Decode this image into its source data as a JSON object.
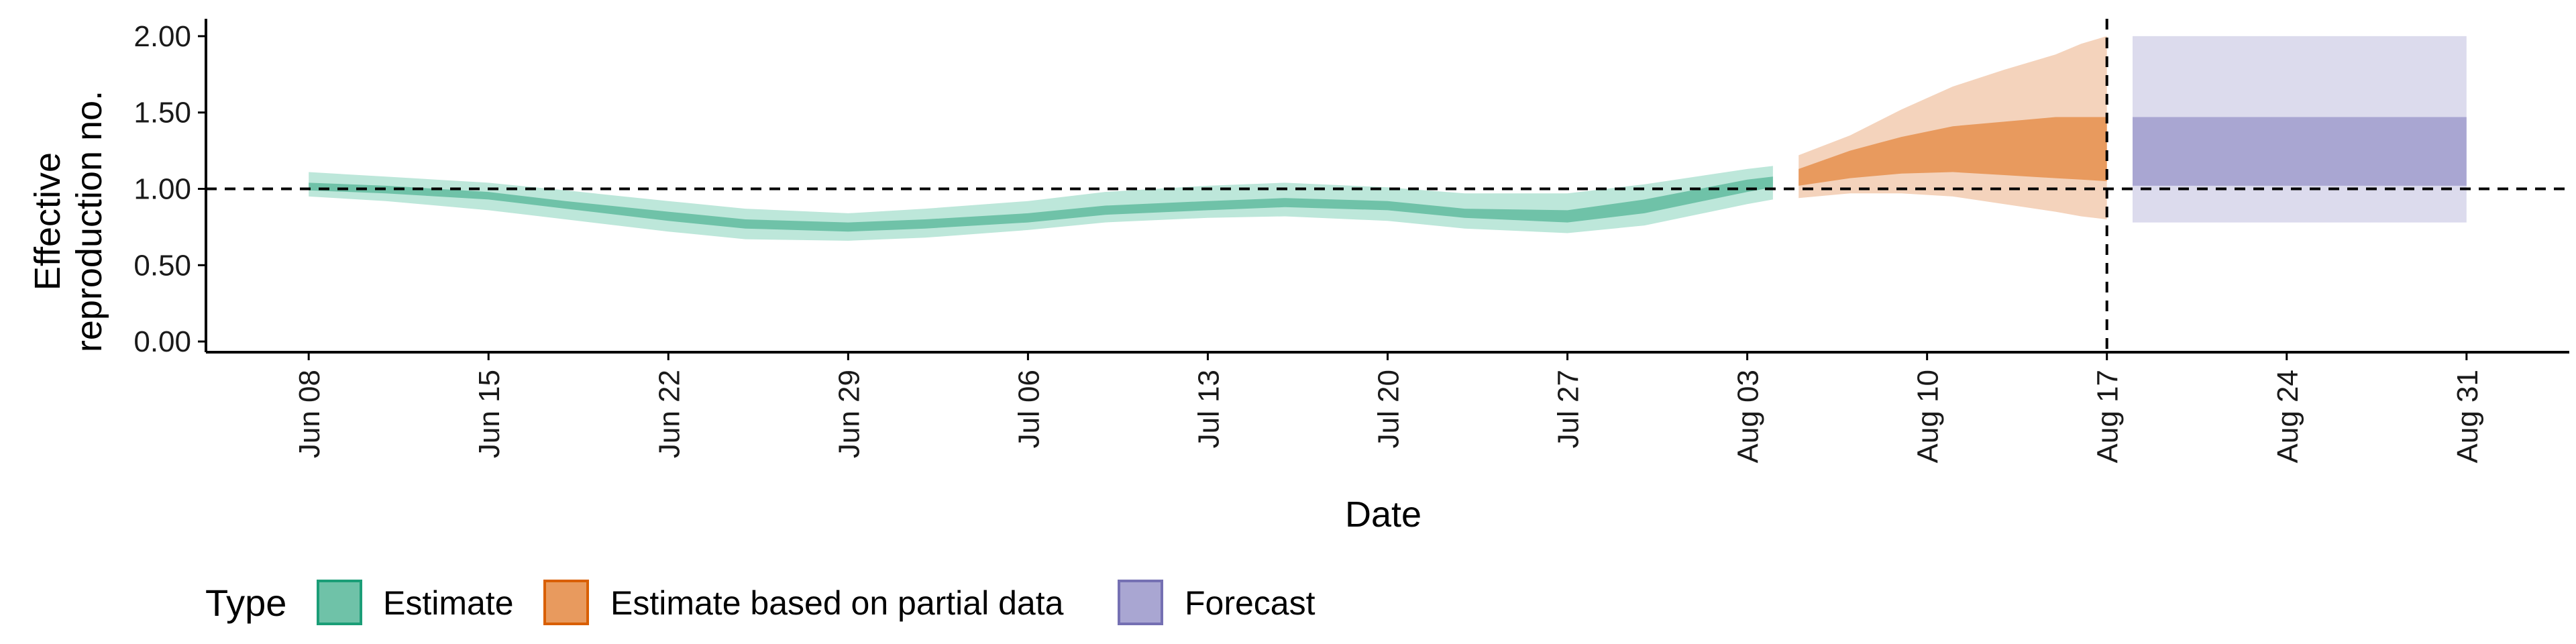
{
  "chart_data": {
    "type": "area",
    "xlabel": "Date",
    "ylabel_lines": [
      "Effective",
      "reproduction no."
    ],
    "ylim": [
      0,
      2.0
    ],
    "yticks": [
      0,
      0.5,
      1.0,
      1.5,
      2.0
    ],
    "ytick_labels": [
      "0.00",
      "0.50",
      "1.00",
      "1.50",
      "2.00"
    ],
    "x_range": [
      "2020-06-04",
      "2020-09-04"
    ],
    "xticks": [
      "2020-06-08",
      "2020-06-15",
      "2020-06-22",
      "2020-06-29",
      "2020-07-06",
      "2020-07-13",
      "2020-07-20",
      "2020-07-27",
      "2020-08-03",
      "2020-08-10",
      "2020-08-17",
      "2020-08-24",
      "2020-08-31"
    ],
    "xtick_labels": [
      "Jun 08",
      "Jun 15",
      "Jun 22",
      "Jun 29",
      "Jul 06",
      "Jul 13",
      "Jul 20",
      "Jul 27",
      "Aug 03",
      "Aug 10",
      "Aug 17",
      "Aug 24",
      "Aug 31"
    ],
    "hline_y": 1.0,
    "vline_x": "2020-08-17",
    "legend": {
      "title": "Type",
      "position": "bottom-left",
      "items": [
        {
          "label": "Estimate",
          "fill": "#6fc2a8",
          "stroke": "#1b9e77"
        },
        {
          "label": "Estimate based on partial data",
          "fill": "#e89a5e",
          "stroke": "#d95f02"
        },
        {
          "label": "Forecast",
          "fill": "#a9a6d2",
          "stroke": "#7570b3"
        }
      ]
    },
    "series": [
      {
        "name": "Estimate",
        "outer_color": "#bde7da",
        "inner_color": "#6fc2a8",
        "x": [
          "2020-06-08",
          "2020-06-11",
          "2020-06-15",
          "2020-06-18",
          "2020-06-22",
          "2020-06-25",
          "2020-06-29",
          "2020-07-02",
          "2020-07-06",
          "2020-07-09",
          "2020-07-13",
          "2020-07-16",
          "2020-07-20",
          "2020-07-23",
          "2020-07-27",
          "2020-07-30",
          "2020-08-03",
          "2020-08-04"
        ],
        "outer_lower": [
          0.95,
          0.92,
          0.86,
          0.8,
          0.72,
          0.67,
          0.66,
          0.68,
          0.73,
          0.78,
          0.81,
          0.82,
          0.79,
          0.74,
          0.71,
          0.76,
          0.9,
          0.93
        ],
        "inner_lower": [
          0.99,
          0.97,
          0.93,
          0.87,
          0.79,
          0.74,
          0.72,
          0.74,
          0.78,
          0.83,
          0.86,
          0.88,
          0.86,
          0.81,
          0.78,
          0.84,
          0.98,
          1.01
        ],
        "inner_upper": [
          1.04,
          1.02,
          0.98,
          0.92,
          0.85,
          0.8,
          0.78,
          0.8,
          0.84,
          0.89,
          0.92,
          0.94,
          0.92,
          0.87,
          0.86,
          0.93,
          1.06,
          1.08
        ],
        "outer_upper": [
          1.11,
          1.08,
          1.04,
          0.99,
          0.92,
          0.87,
          0.84,
          0.87,
          0.92,
          0.98,
          1.02,
          1.04,
          1.01,
          0.97,
          0.97,
          1.03,
          1.13,
          1.15
        ]
      },
      {
        "name": "Estimate based on partial data",
        "outer_color": "#f4d3bc",
        "inner_color": "#e89a5e",
        "x": [
          "2020-08-05",
          "2020-08-07",
          "2020-08-09",
          "2020-08-11",
          "2020-08-13",
          "2020-08-15",
          "2020-08-16",
          "2020-08-17"
        ],
        "outer_lower": [
          0.94,
          0.97,
          0.97,
          0.95,
          0.9,
          0.85,
          0.82,
          0.8
        ],
        "inner_lower": [
          1.02,
          1.07,
          1.1,
          1.11,
          1.09,
          1.07,
          1.06,
          1.05
        ],
        "inner_upper": [
          1.13,
          1.25,
          1.34,
          1.41,
          1.44,
          1.47,
          1.47,
          1.47
        ],
        "outer_upper": [
          1.22,
          1.35,
          1.52,
          1.67,
          1.78,
          1.88,
          1.95,
          2.0
        ]
      },
      {
        "name": "Forecast",
        "outer_color": "#dcdbed",
        "inner_color": "#a9a6d2",
        "x": [
          "2020-08-18",
          "2020-08-31"
        ],
        "outer_lower": [
          0.78,
          0.78
        ],
        "inner_lower": [
          1.02,
          1.02
        ],
        "inner_upper": [
          1.47,
          1.47
        ],
        "outer_upper": [
          2.0,
          2.0
        ]
      }
    ]
  }
}
